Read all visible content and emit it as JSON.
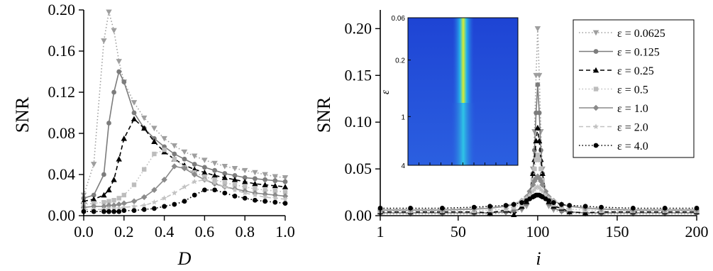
{
  "chart_data": [
    {
      "type": "line",
      "xlabel": "D",
      "ylabel": "SNR",
      "xlim": [
        0.0,
        1.0
      ],
      "ylim": [
        0.0,
        0.2
      ],
      "xticks": [
        "0.0",
        "0.2",
        "0.4",
        "0.6",
        "0.8",
        "1.0"
      ],
      "yticks": [
        "0.00",
        "0.04",
        "0.08",
        "0.12",
        "0.16",
        "0.20"
      ],
      "x": [
        0.0,
        0.05,
        0.1,
        0.125,
        0.15,
        0.175,
        0.2,
        0.25,
        0.3,
        0.35,
        0.4,
        0.45,
        0.5,
        0.55,
        0.6,
        0.65,
        0.7,
        0.75,
        0.8,
        0.85,
        0.9,
        0.95,
        1.0
      ],
      "series": [
        {
          "name": "ε = 0.0625",
          "color": "#9e9e9e",
          "dash": "dotted",
          "marker": "triangle-down",
          "values": [
            0.02,
            0.05,
            0.17,
            0.198,
            0.18,
            0.15,
            0.13,
            0.11,
            0.095,
            0.085,
            0.075,
            0.068,
            0.062,
            0.058,
            0.054,
            0.051,
            0.048,
            0.046,
            0.044,
            0.042,
            0.04,
            0.038,
            0.037
          ]
        },
        {
          "name": "ε = 0.125",
          "color": "#7c7c7c",
          "dash": "solid",
          "marker": "circle",
          "values": [
            0.017,
            0.02,
            0.04,
            0.09,
            0.12,
            0.14,
            0.13,
            0.1,
            0.085,
            0.075,
            0.067,
            0.06,
            0.055,
            0.05,
            0.047,
            0.044,
            0.041,
            0.039,
            0.037,
            0.036,
            0.035,
            0.034,
            0.033
          ]
        },
        {
          "name": "ε = 0.25",
          "color": "#000000",
          "dash": "dashed",
          "marker": "triangle-up",
          "values": [
            0.014,
            0.016,
            0.02,
            0.025,
            0.035,
            0.055,
            0.075,
            0.094,
            0.085,
            0.072,
            0.062,
            0.055,
            0.049,
            0.045,
            0.042,
            0.039,
            0.037,
            0.035,
            0.033,
            0.031,
            0.03,
            0.029,
            0.028
          ]
        },
        {
          "name": "ε = 0.5",
          "color": "#bdbdbd",
          "dash": "dotted",
          "marker": "square",
          "values": [
            0.011,
            0.012,
            0.013,
            0.014,
            0.015,
            0.017,
            0.02,
            0.03,
            0.045,
            0.06,
            0.064,
            0.055,
            0.047,
            0.042,
            0.038,
            0.035,
            0.032,
            0.03,
            0.028,
            0.026,
            0.025,
            0.024,
            0.023
          ]
        },
        {
          "name": "ε = 1.0",
          "color": "#8a8a8a",
          "dash": "solid",
          "marker": "diamond",
          "values": [
            0.008,
            0.009,
            0.009,
            0.01,
            0.01,
            0.011,
            0.012,
            0.014,
            0.018,
            0.025,
            0.035,
            0.048,
            0.046,
            0.04,
            0.035,
            0.031,
            0.028,
            0.026,
            0.024,
            0.022,
            0.021,
            0.02,
            0.019
          ]
        },
        {
          "name": "ε = 2.0",
          "color": "#c2c2c2",
          "dash": "dashed",
          "marker": "star",
          "values": [
            0.006,
            0.006,
            0.006,
            0.007,
            0.007,
            0.007,
            0.008,
            0.009,
            0.01,
            0.013,
            0.017,
            0.022,
            0.028,
            0.033,
            0.035,
            0.032,
            0.028,
            0.025,
            0.022,
            0.02,
            0.018,
            0.017,
            0.016
          ]
        },
        {
          "name": "ε = 4.0",
          "color": "#000000",
          "dash": "dotted",
          "marker": "circle",
          "values": [
            0.004,
            0.004,
            0.004,
            0.004,
            0.004,
            0.004,
            0.005,
            0.005,
            0.006,
            0.007,
            0.009,
            0.011,
            0.014,
            0.02,
            0.025,
            0.025,
            0.022,
            0.019,
            0.017,
            0.015,
            0.014,
            0.013,
            0.012
          ]
        }
      ]
    },
    {
      "type": "line",
      "xlabel": "i",
      "ylabel": "SNR",
      "xlim": [
        1,
        200
      ],
      "ylim": [
        0.0,
        0.22
      ],
      "xticks": [
        "1",
        "50",
        "100",
        "150",
        "200"
      ],
      "yticks": [
        "0.00",
        "0.05",
        "0.10",
        "0.15",
        "0.20"
      ],
      "x": [
        1,
        20,
        40,
        60,
        70,
        80,
        85,
        90,
        93,
        95,
        97,
        98,
        99,
        100,
        101,
        102,
        103,
        105,
        107,
        110,
        115,
        120,
        130,
        140,
        160,
        180,
        200
      ],
      "series": [
        {
          "name": "ε = 0.0625",
          "color": "#9e9e9e",
          "dash": "dotted",
          "marker": "triangle-down",
          "legend": true,
          "values": [
            0.002,
            0.002,
            0.002,
            0.002,
            0.002,
            0.003,
            0.004,
            0.006,
            0.01,
            0.02,
            0.05,
            0.09,
            0.15,
            0.2,
            0.15,
            0.09,
            0.05,
            0.02,
            0.01,
            0.006,
            0.004,
            0.003,
            0.002,
            0.002,
            0.002,
            0.002,
            0.002
          ]
        },
        {
          "name": "ε = 0.125",
          "color": "#7c7c7c",
          "dash": "solid",
          "marker": "circle",
          "legend": true,
          "values": [
            0.003,
            0.003,
            0.003,
            0.003,
            0.003,
            0.004,
            0.005,
            0.008,
            0.013,
            0.022,
            0.045,
            0.07,
            0.11,
            0.14,
            0.11,
            0.07,
            0.045,
            0.022,
            0.013,
            0.008,
            0.005,
            0.004,
            0.003,
            0.003,
            0.003,
            0.003,
            0.003
          ]
        },
        {
          "name": "ε = 0.25",
          "color": "#000000",
          "dash": "dashed",
          "marker": "triangle-up",
          "legend": true,
          "values": [
            0.004,
            0.004,
            0.004,
            0.004,
            0.003,
            0.006,
            0.001,
            0.01,
            0.015,
            0.025,
            0.045,
            0.06,
            0.08,
            0.094,
            0.08,
            0.06,
            0.045,
            0.025,
            0.015,
            0.01,
            0.008,
            0.004,
            0.003,
            0.004,
            0.004,
            0.004,
            0.004
          ]
        },
        {
          "name": "ε = 0.5",
          "color": "#bdbdbd",
          "dash": "dotted",
          "marker": "square",
          "legend": true,
          "values": [
            0.005,
            0.005,
            0.005,
            0.005,
            0.006,
            0.007,
            0.009,
            0.012,
            0.017,
            0.025,
            0.038,
            0.05,
            0.06,
            0.065,
            0.06,
            0.05,
            0.038,
            0.025,
            0.017,
            0.012,
            0.009,
            0.007,
            0.006,
            0.005,
            0.005,
            0.005,
            0.005
          ]
        },
        {
          "name": "ε = 1.0",
          "color": "#8a8a8a",
          "dash": "solid",
          "marker": "diamond",
          "legend": true,
          "values": [
            0.006,
            0.006,
            0.006,
            0.007,
            0.008,
            0.01,
            0.012,
            0.016,
            0.02,
            0.026,
            0.033,
            0.037,
            0.04,
            0.042,
            0.04,
            0.037,
            0.033,
            0.026,
            0.02,
            0.016,
            0.012,
            0.01,
            0.008,
            0.007,
            0.006,
            0.006,
            0.006
          ]
        },
        {
          "name": "ε = 2.0",
          "color": "#c2c2c2",
          "dash": "dashed",
          "marker": "star",
          "legend": true,
          "values": [
            0.007,
            0.007,
            0.007,
            0.008,
            0.009,
            0.011,
            0.013,
            0.016,
            0.019,
            0.022,
            0.026,
            0.028,
            0.03,
            0.031,
            0.03,
            0.028,
            0.026,
            0.022,
            0.019,
            0.016,
            0.013,
            0.011,
            0.009,
            0.008,
            0.007,
            0.007,
            0.007
          ]
        },
        {
          "name": "ε = 4.0",
          "color": "#000000",
          "dash": "dotted",
          "marker": "circle",
          "legend": true,
          "values": [
            0.008,
            0.008,
            0.008,
            0.009,
            0.01,
            0.011,
            0.012,
            0.014,
            0.016,
            0.018,
            0.02,
            0.021,
            0.022,
            0.022,
            0.022,
            0.021,
            0.02,
            0.018,
            0.016,
            0.014,
            0.012,
            0.011,
            0.01,
            0.009,
            0.008,
            0.008,
            0.008
          ]
        }
      ],
      "legend_position": "top-right",
      "inset": {
        "type": "heatmap",
        "ylabel": "ε",
        "yticks": [
          "0.06",
          "0.2",
          "1",
          "4"
        ],
        "yscale": "log",
        "colormap": [
          "#1f3fd1",
          "#2a6ae6",
          "#25c1e8",
          "#7fe05a",
          "#e8f02a"
        ],
        "peak_fraction": 0.5
      }
    }
  ]
}
